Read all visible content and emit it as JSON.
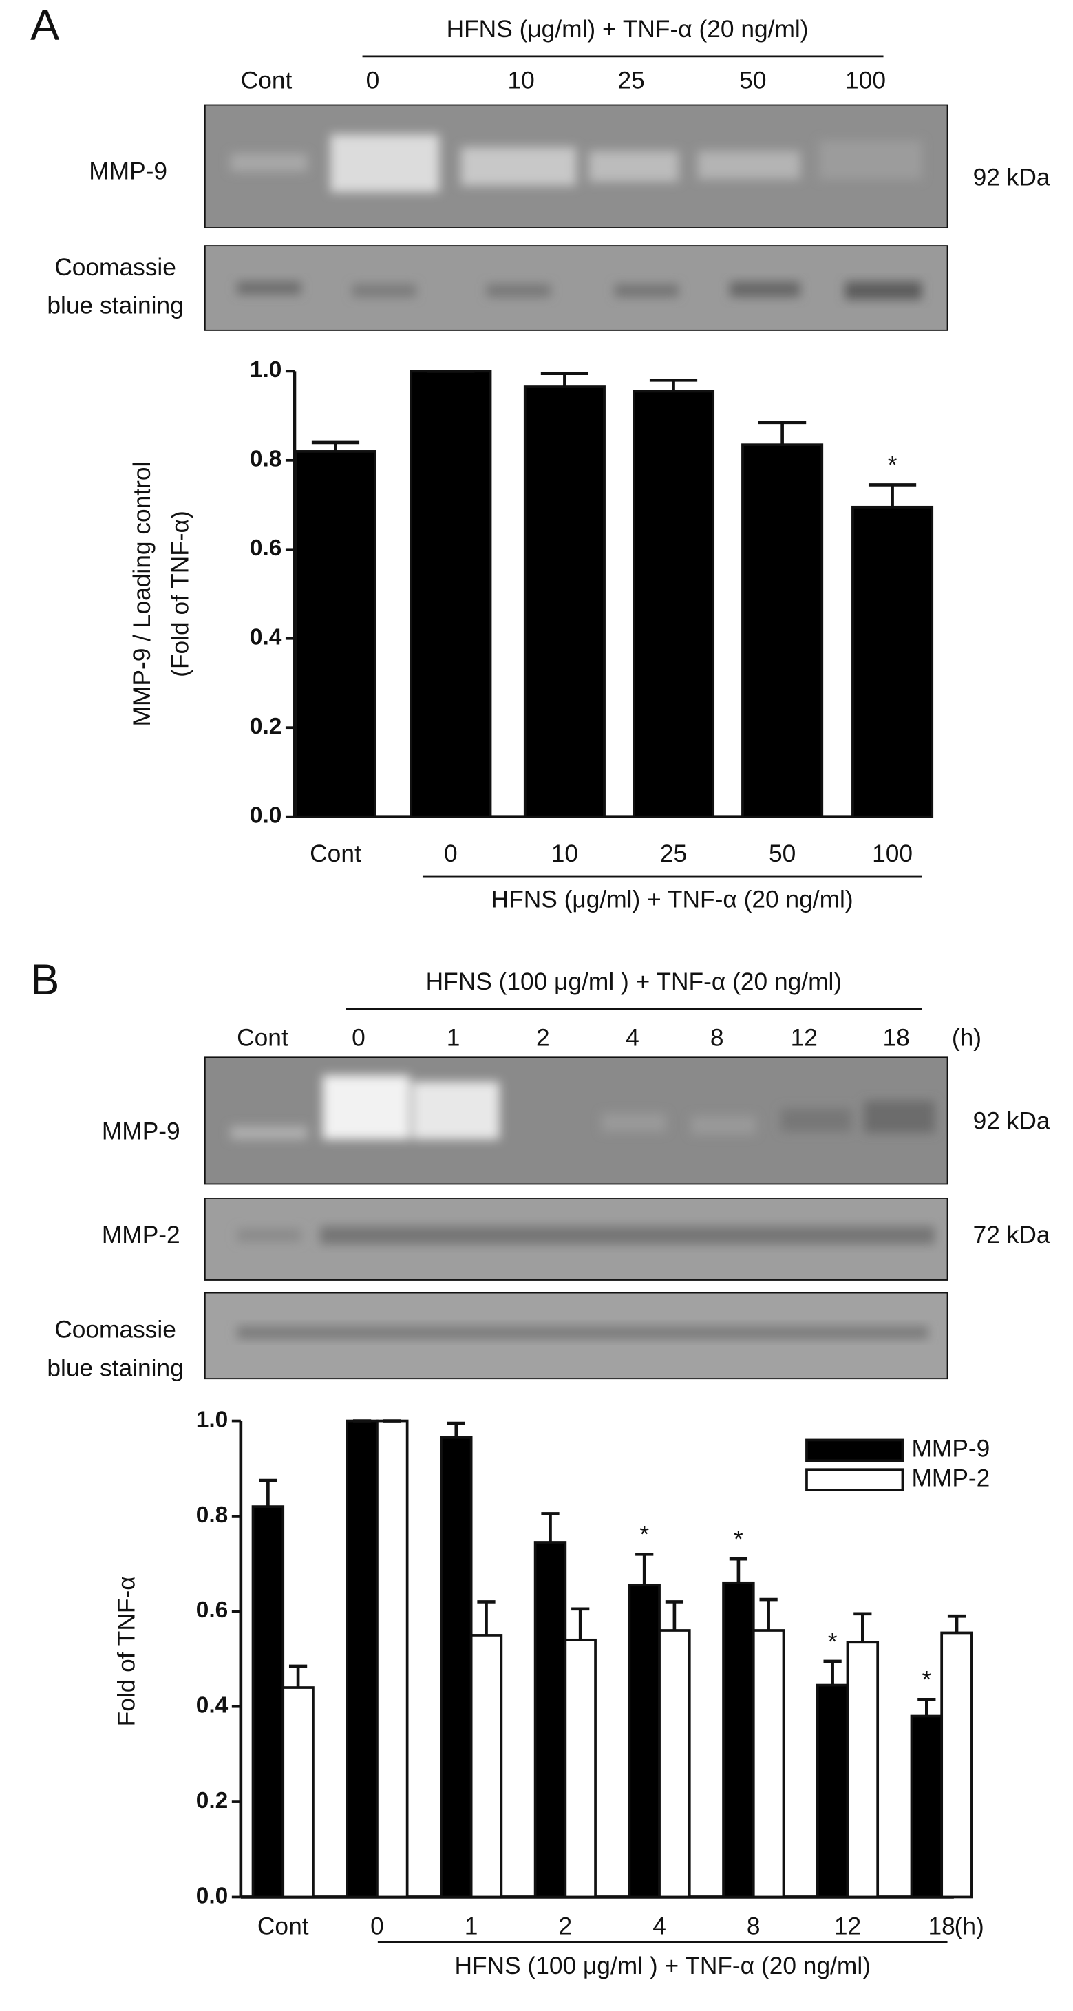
{
  "blots": {
    "a": {
      "panel": "A",
      "header": "HFNS (μg/ml) + TNF-α (20 ng/ml)",
      "lanes": [
        "Cont",
        "0",
        "10",
        "25",
        "50",
        "100"
      ],
      "rows": [
        "MMP-9",
        [
          "Coomassie",
          "blue staining"
        ]
      ],
      "sizes": [
        "92 kDa"
      ]
    },
    "b": {
      "panel": "B",
      "header": "HFNS (100 μg/ml ) + TNF-α (20 ng/ml)",
      "lanes": [
        "Cont",
        "0",
        "1",
        "2",
        "4",
        "8",
        "12",
        "18"
      ],
      "unit": "(h)",
      "rows": [
        "MMP-9",
        "MMP-2",
        [
          "Coomassie",
          "blue staining"
        ]
      ],
      "sizes": [
        "92 kDa",
        "72 kDa"
      ]
    }
  },
  "chart_data": [
    {
      "type": "bar",
      "ylabel": [
        "MMP-9 / Loading control",
        "(Fold of TNF-α)"
      ],
      "xlabel": "HFNS (μg/ml) + TNF-α (20 ng/ml)",
      "categories": [
        "Cont",
        "0",
        "10",
        "25",
        "50",
        "100"
      ],
      "values": [
        0.82,
        1.0,
        0.965,
        0.955,
        0.835,
        0.695
      ],
      "errors": [
        0.02,
        0,
        0.03,
        0.025,
        0.05,
        0.05
      ],
      "significance": [
        null,
        null,
        null,
        null,
        null,
        "*"
      ],
      "color": "#000000",
      "ylim": [
        0,
        1.0
      ],
      "yticks": [
        {
          "value": 0,
          "label": "0.0"
        },
        0.2,
        0.4,
        0.6,
        0.8,
        {
          "value": 1.0,
          "label": "1.0"
        }
      ]
    },
    {
      "type": "grouped_bar",
      "ylabel": "Fold of  TNF-α",
      "xlabel": "HFNS (100 μg/ml ) + TNF-α (20 ng/ml)",
      "x_unit": "(h)",
      "categories": [
        "Cont",
        "0",
        "1",
        "2",
        "4",
        "8",
        "12",
        "18"
      ],
      "legend": "top-right",
      "series": [
        {
          "name": "MMP-9",
          "color": "#000000",
          "values": [
            0.82,
            1.0,
            0.965,
            0.745,
            0.655,
            0.66,
            0.445,
            0.38
          ],
          "errors": [
            0.055,
            0,
            0.03,
            0.06,
            0.065,
            0.05,
            0.05,
            0.035
          ],
          "significance": [
            null,
            null,
            null,
            null,
            "*",
            "*",
            "*",
            "*"
          ]
        },
        {
          "name": "MMP-2",
          "color": "#ffffff",
          "values": [
            0.44,
            1.0,
            0.55,
            0.54,
            0.56,
            0.56,
            0.535,
            0.555
          ],
          "errors": [
            0.045,
            0,
            0.07,
            0.065,
            0.06,
            0.065,
            0.06,
            0.035
          ]
        }
      ],
      "ylim": [
        0,
        1.0
      ],
      "yticks": [
        {
          "value": 0,
          "label": "0.0"
        },
        0.2,
        0.4,
        0.6,
        0.8,
        {
          "value": 1.0,
          "label": "1.0"
        }
      ]
    }
  ]
}
